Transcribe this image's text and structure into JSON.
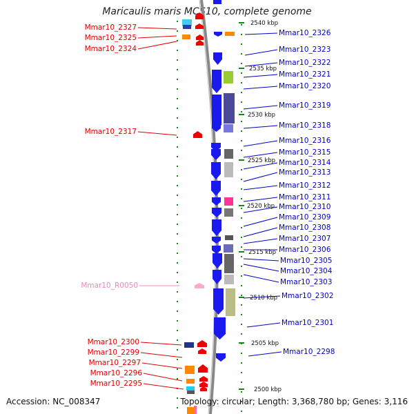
{
  "title": "Maricaulis maris MCS10, complete genome",
  "footer": {
    "accession": "Accession: NC_008347",
    "summary": "Topology: circular; Length: 3,368,780 bp; Genes: 3,116"
  },
  "colors": {
    "left_labels": "#dd0000",
    "right_labels": "#0000cc",
    "rna_label": "#ee88bb",
    "backbone": "#888888",
    "tick_marks": "#118811"
  },
  "scale_ticks": [
    "2540 kbp",
    "2535 kbp",
    "2530 kbp",
    "2525 kbp",
    "2520 kbp",
    "2515 kbp",
    "2510 kbp",
    "2505 kbp",
    "2500 kbp"
  ],
  "left_labels": [
    "Mmar10_2327",
    "Mmar10_2325",
    "Mmar10_2324",
    "Mmar10_2317",
    "Mmar10_R0050",
    "Mmar10_2300",
    "Mmar10_2299",
    "Mmar10_2297",
    "Mmar10_2296",
    "Mmar10_2295"
  ],
  "right_labels": [
    "Mmar10_2326",
    "Mmar10_2323",
    "Mmar10_2322",
    "Mmar10_2321",
    "Mmar10_2320",
    "Mmar10_2319",
    "Mmar10_2318",
    "Mmar10_2316",
    "Mmar10_2315",
    "Mmar10_2314",
    "Mmar10_2313",
    "Mmar10_2312",
    "Mmar10_2311",
    "Mmar10_2310",
    "Mmar10_2309",
    "Mmar10_2308",
    "Mmar10_2307",
    "Mmar10_2306",
    "Mmar10_2305",
    "Mmar10_2304",
    "Mmar10_2303",
    "Mmar10_2302",
    "Mmar10_2301",
    "Mmar10_2298"
  ]
}
